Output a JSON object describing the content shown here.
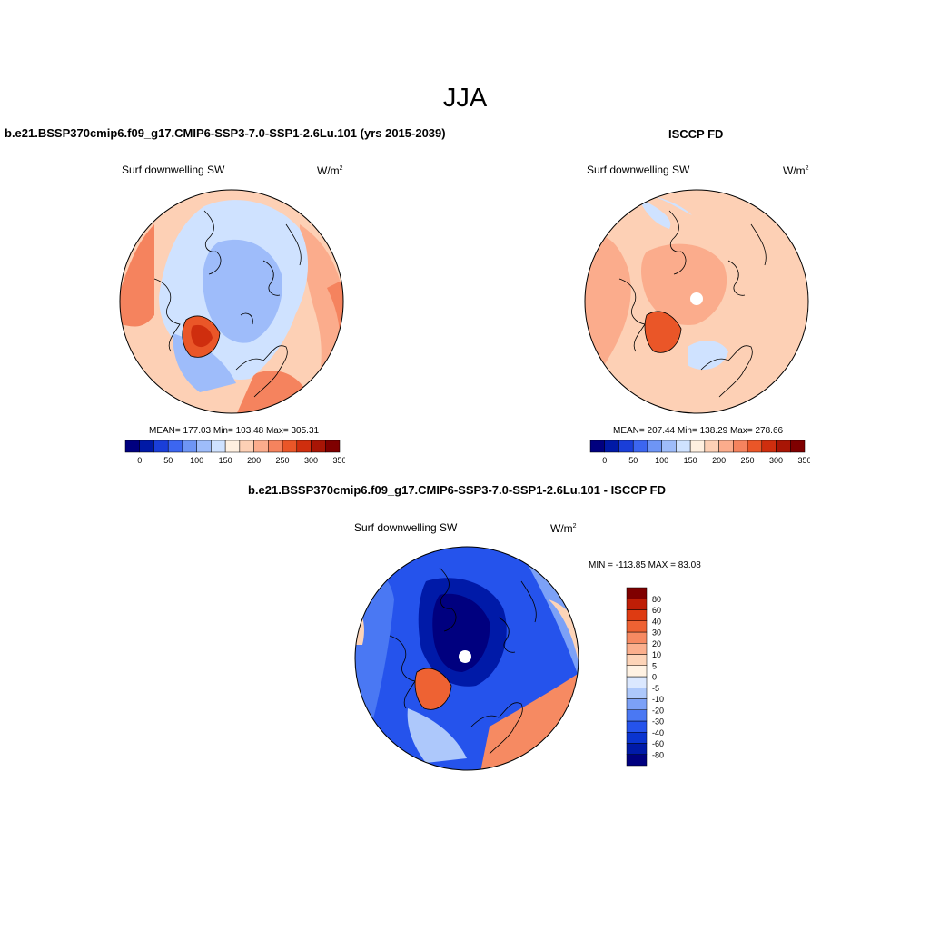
{
  "page": {
    "title": "JJA"
  },
  "panels": [
    {
      "title": "b.e21.BSSP370cmip6.f09_g17.CMIP6-SSP3-7.0-SSP1-2.6Lu.101 (yrs 2015-2039)",
      "variable": "Surf downwelling SW",
      "units_base": "W/m",
      "units_exp": "2",
      "stats": "MEAN= 177.03  Min= 103.48  Max= 305.31",
      "mean": 177.03,
      "min": 103.48,
      "max": 305.31
    },
    {
      "title": "ISCCP FD",
      "variable": "Surf downwelling SW",
      "units_base": "W/m",
      "units_exp": "2",
      "stats": "MEAN= 207.44  Min= 138.29  Max= 278.66",
      "mean": 207.44,
      "min": 138.29,
      "max": 278.66
    },
    {
      "title": "b.e21.BSSP370cmip6.f09_g17.CMIP6-SSP3-7.0-SSP1-2.6Lu.101 - ISCCP FD",
      "variable": "Surf downwelling SW",
      "units_base": "W/m",
      "units_exp": "2",
      "stats": "MIN = -113.85 MAX =  83.08",
      "min": -113.85,
      "max": 83.08
    }
  ],
  "colorbars": {
    "abs_colors": [
      "#00007f",
      "#0019a6",
      "#1a3ed8",
      "#3c66f0",
      "#6e95f5",
      "#9ebcfa",
      "#cfe2ff",
      "#fff0e0",
      "#fdd0b5",
      "#fbac8c",
      "#f5835e",
      "#ea5628",
      "#cf2e0e",
      "#a81505",
      "#7f0000"
    ],
    "abs_ticks": [
      "0",
      "50",
      "100",
      "150",
      "200",
      "250",
      "300",
      "350"
    ],
    "diff_colors": [
      "#00007f",
      "#001aa8",
      "#0a34d0",
      "#2553ec",
      "#4a78f3",
      "#7ca1f7",
      "#adc8fb",
      "#dbe8ff",
      "#fff2e3",
      "#fdd4b8",
      "#fbaf8d",
      "#f68a62",
      "#ee6233",
      "#de3b12",
      "#bf1e06",
      "#7f0000"
    ],
    "diff_ticks": [
      "80",
      "60",
      "40",
      "30",
      "20",
      "10",
      "5",
      "0",
      "-5",
      "-10",
      "-20",
      "-30",
      "-40",
      "-60",
      "-80"
    ]
  },
  "chart_data": [
    {
      "type": "heatmap",
      "projection": "north polar stereographic",
      "title": "b.e21.BSSP370cmip6.f09_g17.CMIP6-SSP3-7.0-SSP1-2.6Lu.101 (yrs 2015-2039)",
      "variable": "Surf downwelling SW",
      "units": "W/m2",
      "levels": [
        0,
        25,
        50,
        75,
        100,
        125,
        150,
        175,
        200,
        225,
        250,
        275,
        300,
        325,
        350
      ],
      "colorbar_ticks": [
        0,
        50,
        100,
        150,
        200,
        250,
        300,
        350
      ],
      "mean": 177.03,
      "min": 103.48,
      "max": 305.31
    },
    {
      "type": "heatmap",
      "projection": "north polar stereographic",
      "title": "ISCCP FD",
      "variable": "Surf downwelling SW",
      "units": "W/m2",
      "levels": [
        0,
        25,
        50,
        75,
        100,
        125,
        150,
        175,
        200,
        225,
        250,
        275,
        300,
        325,
        350
      ],
      "colorbar_ticks": [
        0,
        50,
        100,
        150,
        200,
        250,
        300,
        350
      ],
      "mean": 207.44,
      "min": 138.29,
      "max": 278.66
    },
    {
      "type": "heatmap",
      "projection": "north polar stereographic",
      "title": "b.e21.BSSP370cmip6.f09_g17.CMIP6-SSP3-7.0-SSP1-2.6Lu.101 - ISCCP FD",
      "variable": "Surf downwelling SW",
      "units": "W/m2",
      "levels": [
        -80,
        -60,
        -40,
        -30,
        -20,
        -10,
        -5,
        0,
        5,
        10,
        20,
        30,
        40,
        60,
        80
      ],
      "colorbar_ticks": [
        80,
        60,
        40,
        30,
        20,
        10,
        5,
        0,
        -5,
        -10,
        -20,
        -30,
        -40,
        -60,
        -80
      ],
      "min": -113.85,
      "max": 83.08
    }
  ]
}
